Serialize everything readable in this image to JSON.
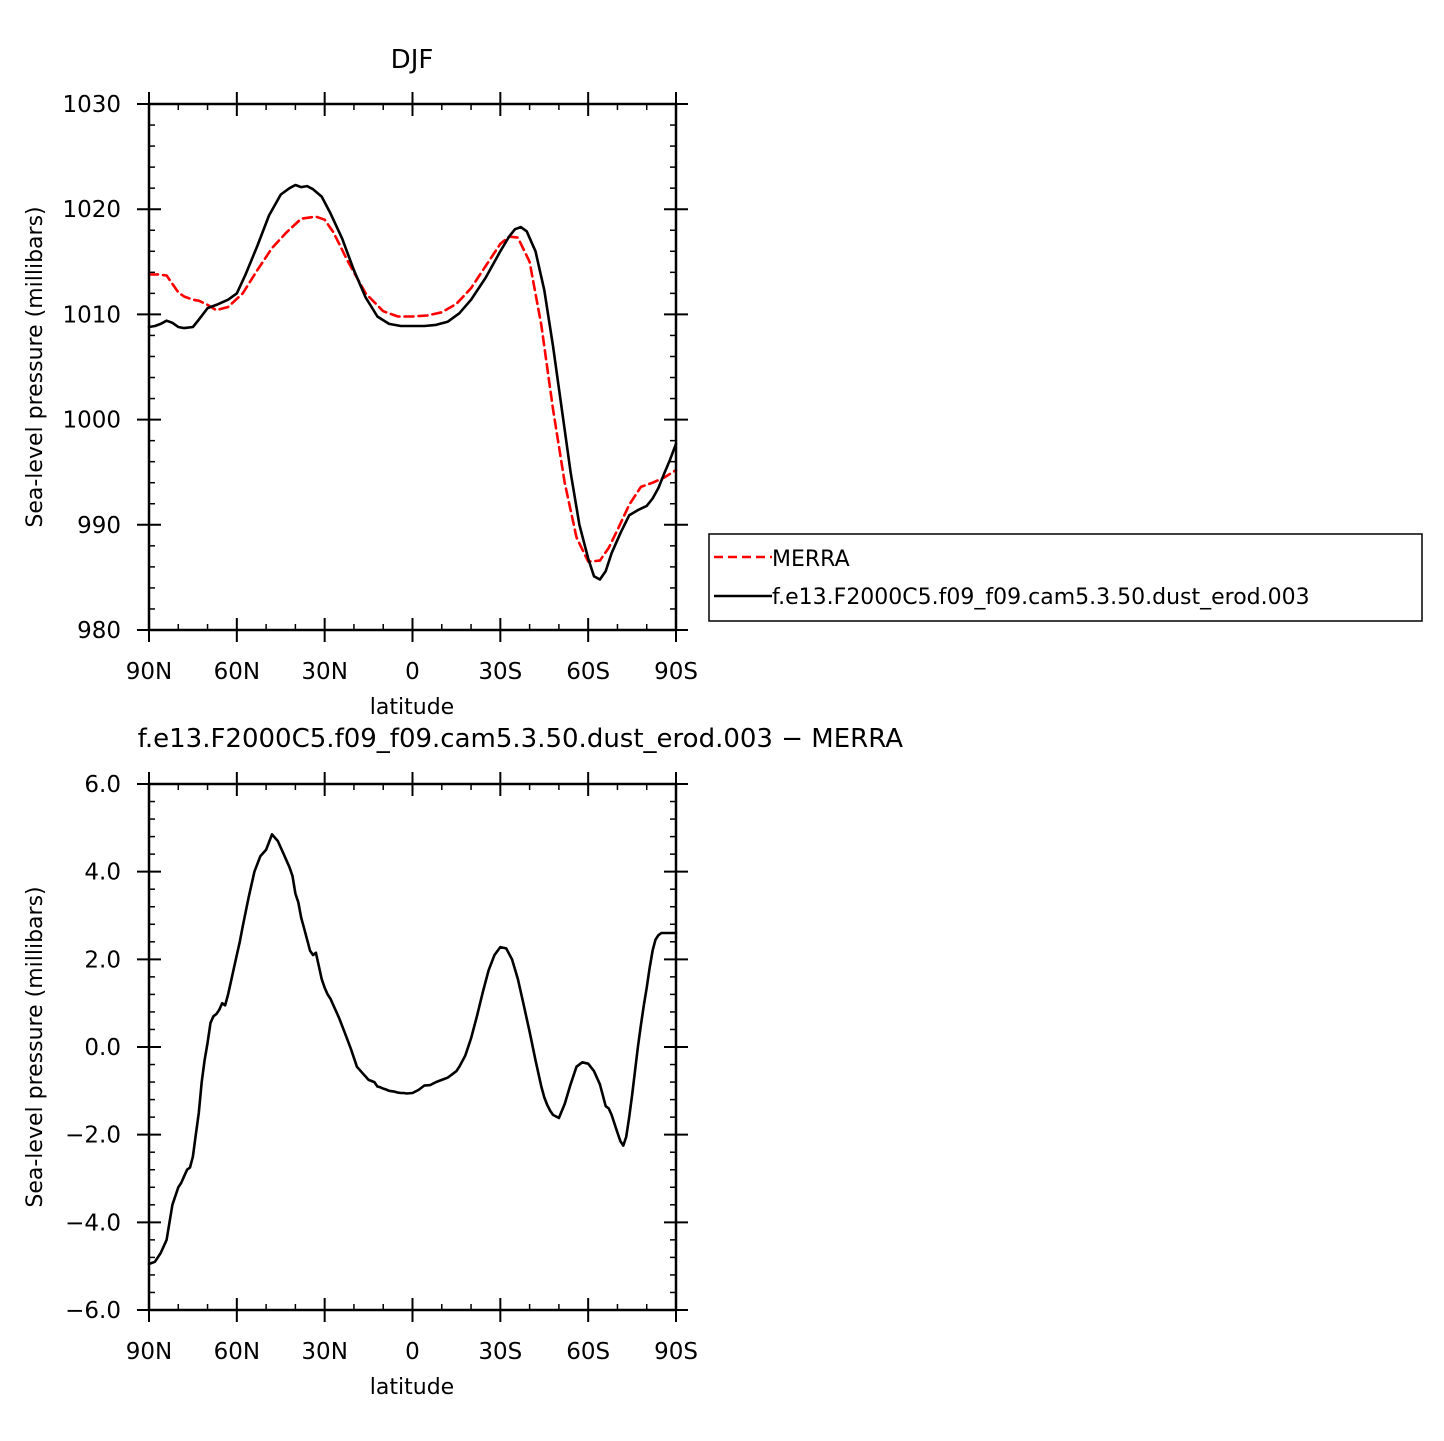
{
  "chart_data": [
    {
      "type": "line",
      "title": "DJF",
      "xlabel": "latitude",
      "ylabel": "Sea-level pressure (millibars)",
      "xlim": [
        90,
        -90
      ],
      "ylim": [
        980,
        1030
      ],
      "xticks": [
        90,
        60,
        30,
        0,
        -30,
        -60,
        -90
      ],
      "xtick_labels": [
        "90N",
        "60N",
        "30N",
        "0",
        "30S",
        "60S",
        "90S"
      ],
      "yticks": [
        980,
        990,
        1000,
        1010,
        1020,
        1030
      ],
      "ytick_labels": [
        "980",
        "990",
        "1000",
        "1010",
        "1020",
        "1030"
      ],
      "legend_position": "right",
      "series": [
        {
          "name": "MERRA",
          "color": "#ff0000",
          "style": "dashed",
          "x": [
            90,
            87,
            84,
            82,
            80,
            78,
            75,
            73,
            70,
            67,
            63,
            58,
            53,
            48,
            43,
            38,
            33,
            30,
            27,
            22,
            16,
            10,
            5,
            0,
            -5,
            -10,
            -15,
            -20,
            -25,
            -30,
            -33,
            -36,
            -40,
            -44,
            -48,
            -52,
            -56,
            -60,
            -64,
            -67,
            -70,
            -74,
            -78,
            -82,
            -86,
            -90
          ],
          "y": [
            1013.8,
            1013.8,
            1013.7,
            1012.9,
            1012.1,
            1011.7,
            1011.4,
            1011.3,
            1010.9,
            1010.4,
            1010.7,
            1012.0,
            1014.2,
            1016.3,
            1017.8,
            1019.1,
            1019.3,
            1019.0,
            1017.8,
            1015.0,
            1012.0,
            1010.3,
            1009.8,
            1009.8,
            1009.9,
            1010.2,
            1011.0,
            1012.5,
            1014.6,
            1016.7,
            1017.4,
            1017.3,
            1015.0,
            1009.0,
            1001.0,
            994.0,
            988.8,
            986.5,
            986.6,
            987.8,
            989.5,
            991.9,
            993.6,
            994.0,
            994.5,
            995.2
          ]
        },
        {
          "name": "f.e13.F2000C5.f09_f09.cam5.3.50.dust_erod.003",
          "color": "#000000",
          "style": "solid",
          "x": [
            90,
            88,
            86,
            84,
            82,
            80,
            78,
            75,
            73,
            70,
            67,
            63,
            60,
            57,
            53,
            49,
            45,
            42,
            40,
            38,
            36,
            34,
            31,
            28,
            24,
            20,
            16,
            12,
            8,
            4,
            0,
            -4,
            -8,
            -12,
            -16,
            -20,
            -25,
            -30,
            -33,
            -35,
            -37,
            -39,
            -42,
            -45,
            -48,
            -51,
            -54,
            -57,
            -60,
            -62,
            -64,
            -66,
            -68,
            -71,
            -74,
            -77,
            -80,
            -82,
            -84,
            -86,
            -88,
            -90
          ],
          "y": [
            1008.8,
            1008.9,
            1009.1,
            1009.4,
            1009.2,
            1008.8,
            1008.7,
            1008.8,
            1009.5,
            1010.6,
            1010.9,
            1011.4,
            1012.0,
            1013.8,
            1016.5,
            1019.4,
            1021.4,
            1022.0,
            1022.3,
            1022.1,
            1022.2,
            1021.9,
            1021.2,
            1019.6,
            1017.2,
            1014.2,
            1011.6,
            1009.8,
            1009.1,
            1008.9,
            1008.9,
            1008.9,
            1009.0,
            1009.3,
            1010.1,
            1011.4,
            1013.5,
            1016.0,
            1017.4,
            1018.1,
            1018.3,
            1017.9,
            1016.0,
            1012.3,
            1007.0,
            1001.0,
            995.0,
            990.0,
            986.8,
            985.1,
            984.8,
            985.6,
            987.3,
            989.2,
            990.9,
            991.4,
            991.8,
            992.5,
            993.5,
            994.9,
            996.2,
            997.7
          ]
        }
      ]
    },
    {
      "type": "line",
      "title": "f.e13.F2000C5.f09_f09.cam5.3.50.dust_erod.003 − MERRA",
      "xlabel": "latitude",
      "ylabel": "Sea-level pressure (millibars)",
      "xlim": [
        90,
        -90
      ],
      "ylim": [
        -6.0,
        6.0
      ],
      "xticks": [
        90,
        60,
        30,
        0,
        -30,
        -60,
        -90
      ],
      "xtick_labels": [
        "90N",
        "60N",
        "30N",
        "0",
        "30S",
        "60S",
        "90S"
      ],
      "yticks": [
        -6,
        -4,
        -2,
        0,
        2,
        4,
        6
      ],
      "ytick_labels": [
        "−6.0",
        "−4.0",
        "−2.0",
        "0.0",
        "2.0",
        "4.0",
        "6.0"
      ],
      "series": [
        {
          "color": "#000000",
          "style": "solid",
          "x": [
            90,
            88,
            86,
            84,
            83,
            82,
            80,
            79,
            78,
            77,
            76,
            75,
            74,
            73,
            72,
            71,
            70,
            69,
            68,
            67,
            66,
            65,
            64,
            63,
            62,
            61,
            60,
            59,
            58,
            56,
            54,
            52,
            50,
            48,
            46,
            44,
            42,
            41,
            40,
            39,
            38,
            37,
            36,
            35,
            34,
            33,
            32,
            31,
            30,
            29,
            28,
            27,
            26,
            25,
            23,
            21,
            19,
            17,
            15,
            13,
            12,
            11,
            10,
            9,
            8,
            6,
            5,
            4,
            3,
            2,
            0,
            -2,
            -4,
            -6,
            -8,
            -10,
            -12,
            -13,
            -14,
            -15,
            -16,
            -18,
            -20,
            -22,
            -24,
            -26,
            -28,
            -30,
            -32,
            -34,
            -36,
            -38,
            -40,
            -42,
            -43,
            -44,
            -45,
            -46,
            -47,
            -48,
            -50,
            -52,
            -54,
            -56,
            -58,
            -60,
            -62,
            -64,
            -65,
            -66,
            -67,
            -68,
            -69,
            -70,
            -71,
            -72,
            -73,
            -74,
            -75,
            -76,
            -77,
            -78,
            -79,
            -80,
            -81,
            -82,
            -83,
            -84,
            -85,
            -86,
            -87,
            -88,
            -89,
            -90
          ],
          "y": [
            -4.95,
            -4.9,
            -4.7,
            -4.4,
            -4.0,
            -3.6,
            -3.2,
            -3.1,
            -2.95,
            -2.8,
            -2.75,
            -2.5,
            -2.0,
            -1.5,
            -0.8,
            -0.3,
            0.1,
            0.55,
            0.7,
            0.75,
            0.85,
            1.0,
            0.95,
            1.2,
            1.5,
            1.8,
            2.1,
            2.4,
            2.75,
            3.4,
            4.0,
            4.35,
            4.5,
            4.85,
            4.7,
            4.4,
            4.1,
            3.9,
            3.5,
            3.3,
            2.95,
            2.7,
            2.45,
            2.2,
            2.1,
            2.15,
            1.85,
            1.55,
            1.35,
            1.2,
            1.1,
            0.95,
            0.8,
            0.65,
            0.3,
            -0.05,
            -0.45,
            -0.6,
            -0.75,
            -0.8,
            -0.9,
            -0.92,
            -0.95,
            -0.97,
            -1.0,
            -1.02,
            -1.04,
            -1.05,
            -1.05,
            -1.06,
            -1.05,
            -0.98,
            -0.88,
            -0.87,
            -0.8,
            -0.75,
            -0.7,
            -0.65,
            -0.6,
            -0.55,
            -0.45,
            -0.2,
            0.2,
            0.7,
            1.25,
            1.75,
            2.1,
            2.28,
            2.25,
            2.0,
            1.55,
            0.95,
            0.35,
            -0.3,
            -0.6,
            -0.9,
            -1.15,
            -1.32,
            -1.45,
            -1.55,
            -1.62,
            -1.3,
            -0.85,
            -0.45,
            -0.35,
            -0.38,
            -0.55,
            -0.85,
            -1.1,
            -1.35,
            -1.4,
            -1.55,
            -1.75,
            -1.95,
            -2.15,
            -2.25,
            -2.05,
            -1.6,
            -1.1,
            -0.55,
            0.0,
            0.5,
            0.95,
            1.35,
            1.8,
            2.2,
            2.45,
            2.55,
            2.6,
            2.6,
            2.6,
            2.6,
            2.6,
            2.6
          ]
        }
      ]
    }
  ],
  "legend": {
    "entries": [
      "MERRA",
      "f.e13.F2000C5.f09_f09.cam5.3.50.dust_erod.003"
    ]
  }
}
